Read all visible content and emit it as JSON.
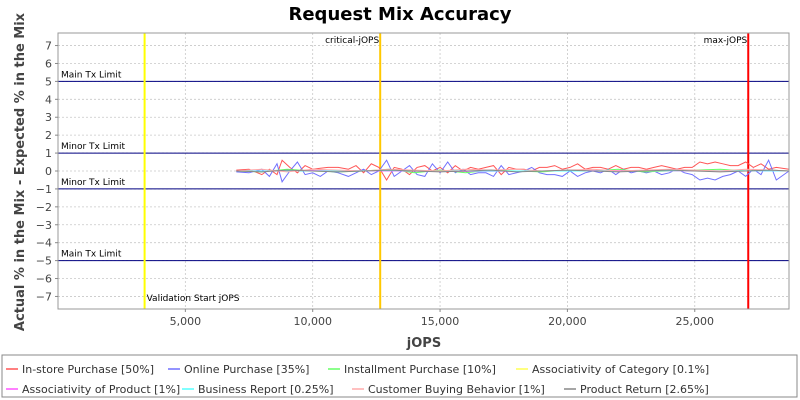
{
  "chart_data": {
    "type": "line",
    "title": "Request Mix Accuracy",
    "xlabel": "jOPS",
    "ylabel": "Actual % in the Mix - Expected % in the Mix",
    "xlim": [
      0,
      28700
    ],
    "ylim": [
      -7.7,
      7.7
    ],
    "xticks": [
      5000,
      10000,
      15000,
      20000,
      25000
    ],
    "xtick_labels": [
      "5,000",
      "10,000",
      "15,000",
      "20,000",
      "25,000"
    ],
    "yticks": [
      -7,
      -6,
      -5,
      -4,
      -3,
      -2,
      -1,
      0,
      1,
      2,
      3,
      4,
      5,
      6,
      7
    ],
    "grid": true,
    "legend_position": "bottom",
    "limit_lines": [
      {
        "label": "Main Tx Limit",
        "value": 5,
        "label_side": "above"
      },
      {
        "label": "Minor Tx Limit",
        "value": 1,
        "label_side": "above"
      },
      {
        "label": "Minor Tx Limit",
        "value": -1,
        "label_side": "above"
      },
      {
        "label": "Main Tx Limit",
        "value": -5,
        "label_side": "above"
      }
    ],
    "markers": [
      {
        "label": "Validation Start jOPS",
        "x": 3400,
        "color": "#ffff00",
        "label_pos": "bottom"
      },
      {
        "label": "critical-jOPS",
        "x": 12650,
        "color": "#ffc800",
        "label_pos": "top"
      },
      {
        "label": "max-jOPS",
        "x": 27100,
        "color": "#ff0000",
        "label_pos": "top"
      }
    ],
    "series": [
      {
        "name": "In-store Purchase [50%]",
        "color": "#ff5555",
        "x": [
          7000,
          7500,
          8000,
          8300,
          8600,
          8800,
          9100,
          9400,
          9700,
          10000,
          10300,
          10600,
          11000,
          11400,
          11700,
          12000,
          12300,
          12600,
          12900,
          13200,
          13500,
          13800,
          14100,
          14400,
          14700,
          15000,
          15300,
          15600,
          15900,
          16200,
          16500,
          16800,
          17100,
          17400,
          17700,
          18000,
          18300,
          18600,
          18900,
          19200,
          19500,
          19800,
          20100,
          20400,
          20700,
          21000,
          21300,
          21600,
          21900,
          22200,
          22500,
          22800,
          23100,
          23400,
          23700,
          24000,
          24300,
          24600,
          24900,
          25200,
          25500,
          25800,
          26100,
          26400,
          26700,
          27000,
          27300,
          27600,
          27900,
          28200,
          28700
        ],
        "y": [
          0.05,
          0.1,
          -0.2,
          0.1,
          -0.2,
          0.6,
          0.2,
          -0.1,
          0.3,
          0.1,
          0.15,
          0.2,
          0.2,
          0.1,
          0.3,
          -0.1,
          0.4,
          0.2,
          -0.5,
          0.2,
          0.1,
          -0.2,
          0.2,
          0.3,
          0,
          0.2,
          -0.1,
          0.3,
          0,
          0.2,
          0.1,
          0.2,
          0.3,
          -0.2,
          0.2,
          0.1,
          0.1,
          0,
          0.2,
          0.2,
          0.3,
          0.1,
          0.2,
          0.4,
          0.1,
          0.2,
          0.2,
          0.1,
          0.3,
          0.1,
          0.2,
          0.2,
          0.1,
          0.2,
          0.3,
          0.2,
          0.1,
          0.2,
          0.2,
          0.5,
          0.4,
          0.5,
          0.4,
          0.3,
          0.3,
          0.5,
          0.2,
          0.4,
          0.1,
          0.2,
          0.1
        ]
      },
      {
        "name": "Online Purchase [35%]",
        "color": "#7070ff",
        "x": [
          7000,
          7500,
          8000,
          8300,
          8600,
          8800,
          9100,
          9400,
          9700,
          10000,
          10300,
          10600,
          11000,
          11400,
          11700,
          12000,
          12300,
          12600,
          12900,
          13200,
          13500,
          13800,
          14100,
          14400,
          14700,
          15000,
          15300,
          15600,
          15900,
          16200,
          16500,
          16800,
          17100,
          17400,
          17700,
          18000,
          18300,
          18600,
          18900,
          19200,
          19500,
          19800,
          20100,
          20400,
          20700,
          21000,
          21300,
          21600,
          21900,
          22200,
          22500,
          22800,
          23100,
          23400,
          23700,
          24000,
          24300,
          24600,
          24900,
          25200,
          25500,
          25800,
          26100,
          26400,
          26700,
          27000,
          27300,
          27600,
          27900,
          28200,
          28700
        ],
        "y": [
          -0.05,
          -0.1,
          0.1,
          -0.3,
          0.4,
          -0.6,
          0.0,
          0.5,
          -0.2,
          -0.1,
          -0.3,
          0.0,
          -0.1,
          -0.3,
          -0.1,
          0.1,
          -0.2,
          0.0,
          0.6,
          -0.3,
          0.0,
          0.3,
          -0.2,
          -0.3,
          0.4,
          -0.1,
          0.5,
          -0.1,
          0.1,
          -0.2,
          -0.1,
          -0.1,
          -0.3,
          0.3,
          -0.2,
          -0.1,
          0.0,
          0.2,
          -0.1,
          -0.2,
          -0.2,
          -0.3,
          0.0,
          -0.3,
          -0.1,
          0.0,
          -0.1,
          0.1,
          -0.2,
          0.1,
          -0.1,
          0.0,
          -0.1,
          0.0,
          -0.2,
          -0.1,
          0.1,
          -0.1,
          -0.2,
          -0.5,
          -0.4,
          -0.5,
          -0.3,
          -0.2,
          0.0,
          -0.3,
          0.1,
          -0.2,
          0.6,
          -0.5,
          0.0
        ]
      },
      {
        "name": "Installment Purchase [10%]",
        "color": "#66ff66",
        "x": [
          7000,
          8000,
          9000,
          10000,
          11000,
          12000,
          13000,
          14000,
          15000,
          16000,
          17000,
          18000,
          19000,
          20000,
          21000,
          22000,
          23000,
          24000,
          25000,
          26000,
          27000,
          28000,
          28700
        ],
        "y": [
          0.0,
          -0.05,
          0.1,
          0.0,
          -0.05,
          0.0,
          0.1,
          -0.1,
          0.05,
          -0.1,
          0.05,
          0.0,
          -0.05,
          0.05,
          0.0,
          0.1,
          -0.05,
          0.0,
          0.05,
          0.1,
          0.0,
          0.05,
          0.0
        ]
      },
      {
        "name": "Associativity of Category [0.1%]",
        "color": "#ffff55",
        "x": [
          7000,
          10000,
          13000,
          16000,
          19000,
          22000,
          25000,
          28700
        ],
        "y": [
          0.0,
          0.0,
          0.0,
          0.0,
          0.0,
          0.0,
          0.0,
          0.0
        ]
      },
      {
        "name": "Associativity of Product [1%]",
        "color": "#ff55ff",
        "x": [
          7000,
          10000,
          13000,
          16000,
          19000,
          22000,
          25000,
          28700
        ],
        "y": [
          0.0,
          0.02,
          0.0,
          -0.02,
          0.0,
          0.02,
          0.0,
          0.0
        ]
      },
      {
        "name": "Business Report [0.25%]",
        "color": "#55ffff",
        "x": [
          7000,
          10000,
          13000,
          16000,
          19000,
          22000,
          25000,
          28700
        ],
        "y": [
          0.0,
          0.0,
          0.02,
          0.0,
          0.0,
          0.0,
          0.02,
          0.0
        ]
      },
      {
        "name": "Customer Buying Behavior [1%]",
        "color": "#ffaaaa",
        "x": [
          7000,
          8000,
          9000,
          10000,
          11000,
          12000,
          13000,
          14000,
          15000,
          16000,
          17000,
          18000,
          19000,
          20000,
          21000,
          22000,
          23000,
          24000,
          25000,
          26000,
          27000,
          28000,
          28700
        ],
        "y": [
          0.0,
          0.1,
          -0.05,
          0.1,
          0.05,
          0.0,
          0.1,
          0.05,
          0.0,
          0.1,
          0.05,
          0.1,
          0.0,
          0.05,
          0.1,
          0.0,
          0.05,
          0.1,
          0.05,
          0.0,
          0.1,
          0.05,
          0.0
        ]
      },
      {
        "name": "Product Return [2.65%]",
        "color": "#888888",
        "x": [
          7000,
          8000,
          9000,
          10000,
          11000,
          12000,
          13000,
          14000,
          15000,
          16000,
          17000,
          18000,
          19000,
          20000,
          21000,
          22000,
          23000,
          24000,
          25000,
          26000,
          27000,
          28000,
          28700
        ],
        "y": [
          0.0,
          -0.05,
          0.05,
          0.0,
          -0.05,
          0.0,
          0.05,
          0.0,
          -0.05,
          0.0,
          0.05,
          -0.05,
          0.0,
          0.05,
          0.0,
          -0.05,
          0.0,
          0.05,
          0.0,
          -0.05,
          0.0,
          0.05,
          0.0
        ]
      }
    ]
  }
}
